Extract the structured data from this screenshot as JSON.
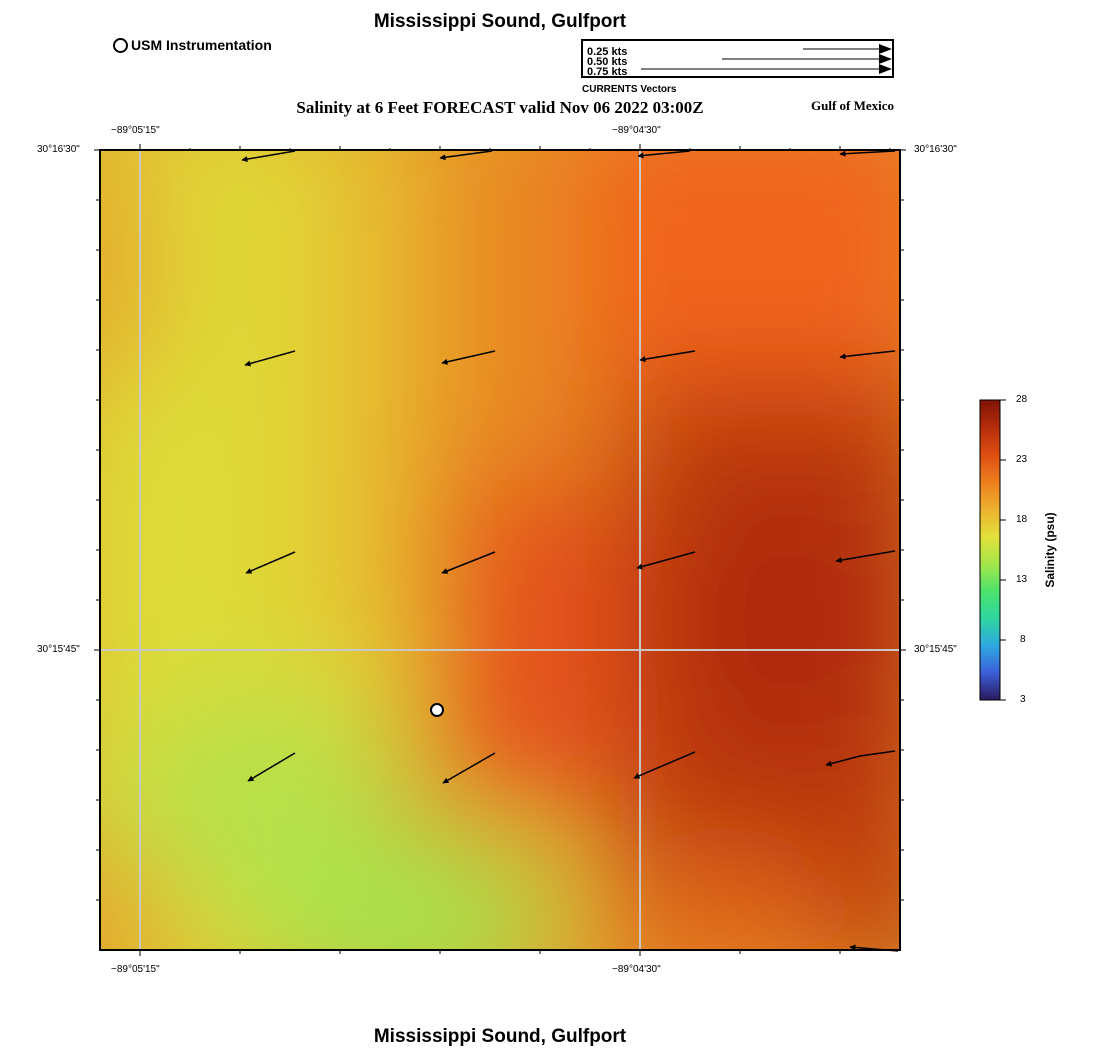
{
  "header": {
    "title": "Mississippi Sound, Gulfport",
    "subtitle": "Salinity at 6 Feet FORECAST valid Nov 06 2022 03:00Z",
    "region": "Gulf of Mexico"
  },
  "footer": {
    "title": "Mississippi Sound, Gulfport"
  },
  "legend": {
    "station_label": "USM Instrumentation",
    "vectors": [
      {
        "label": "0.25 kts",
        "speed": 0.25
      },
      {
        "label": "0.50 kts",
        "speed": 0.5
      },
      {
        "label": "0.75 kts",
        "speed": 0.75
      }
    ],
    "vector_caption": "CURRENTS Vectors"
  },
  "axes": {
    "lon_ticks": [
      "−89°05'15\"",
      "−89°04'30\""
    ],
    "lat_ticks": [
      "30°16'30\"",
      "30°15'45\""
    ]
  },
  "colorbar": {
    "title": "Salinity (psu)",
    "min": 3,
    "max": 28,
    "ticks": [
      "28",
      "23",
      "18",
      "13",
      "8",
      "3"
    ],
    "colors": [
      "#2a1a5e",
      "#3b5fd8",
      "#2ea9e0",
      "#2fd6a0",
      "#4ee36a",
      "#a6e64a",
      "#e2e03a",
      "#ecb02e",
      "#ec7e1e",
      "#de4e12",
      "#b52c0c",
      "#7e1406"
    ]
  },
  "field_colors": {
    "west_yellow": "#dedc38",
    "light_green": "#a8e24c",
    "orange": "#e88a24",
    "red_orange": "#e5541a",
    "dark_red": "#b4300e",
    "north_orange": "#f0641a"
  },
  "station": {
    "name": "USM Instrumentation"
  }
}
